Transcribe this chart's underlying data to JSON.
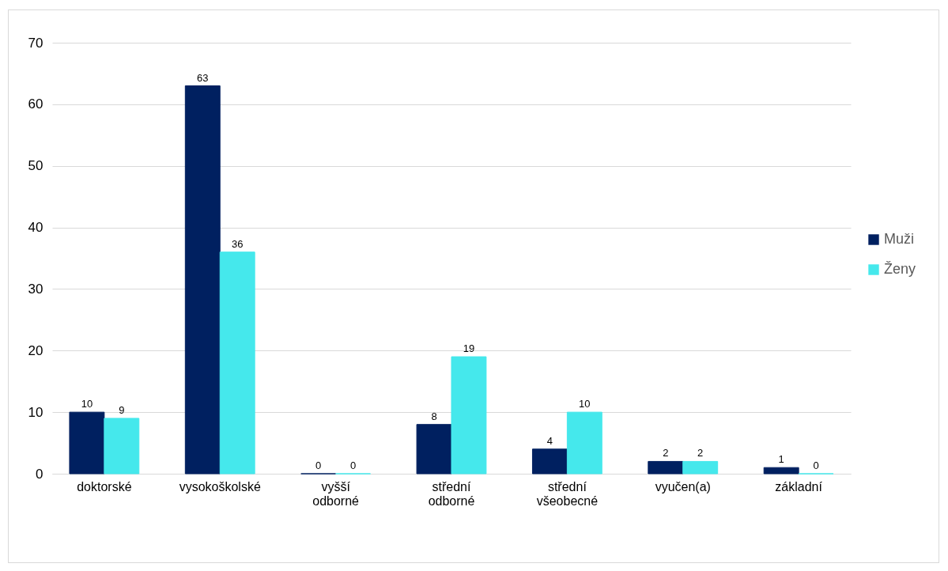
{
  "chart_data": {
    "type": "bar",
    "categories": [
      "doktorské",
      "vysokoškolské",
      "vyšší odborné",
      "střední odborné",
      "střední všeobecné",
      "vyučen(a)",
      "základní"
    ],
    "series": [
      {
        "name": "Muži",
        "color": "#002060",
        "values": [
          10,
          63,
          0,
          8,
          4,
          2,
          1
        ]
      },
      {
        "name": "Ženy",
        "color": "#45e8ec",
        "values": [
          9,
          36,
          0,
          19,
          10,
          2,
          0
        ]
      }
    ],
    "ylim": [
      0,
      70
    ],
    "yticks": [
      0,
      10,
      20,
      30,
      40,
      50,
      60,
      70
    ],
    "grid": "y",
    "legend": "right",
    "data_labels": true
  }
}
